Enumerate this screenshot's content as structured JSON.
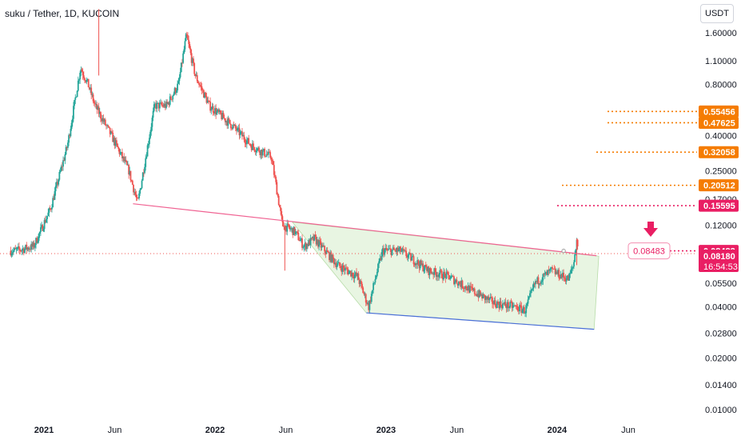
{
  "header": {
    "title": "suku / Tether, 1D, KUCOIN",
    "currency": "USDT"
  },
  "chart_data": {
    "type": "candlestick",
    "symbol": "suku / Tether",
    "interval": "1D",
    "exchange": "KUCOIN",
    "y_scale": "log",
    "ylim": [
      0.009,
      2.2
    ],
    "y_ticks": [
      "1.60000",
      "1.10000",
      "0.80000",
      "0.55456",
      "0.47625",
      "0.40000",
      "0.32058",
      "0.25000",
      "0.20512",
      "0.17000",
      "0.15595",
      "0.12000",
      "0.08483",
      "0.08180",
      "0.05500",
      "0.04000",
      "0.02800",
      "0.02000",
      "0.01400",
      "0.01000"
    ],
    "x_tick_labels": [
      "2021",
      "Jun",
      "2022",
      "Jun",
      "2023",
      "Jun",
      "2024",
      "Jun"
    ],
    "x_ticks": [
      "2021-01-01",
      "2021-06-01",
      "2022-01-01",
      "2022-06-01",
      "2023-01-01",
      "2023-06-01",
      "2024-01-01",
      "2024-06-01"
    ],
    "price_path": [
      [
        "2020-11-01",
        0.085
      ],
      [
        "2020-12-10",
        0.09
      ],
      [
        "2021-01-15",
        0.15
      ],
      [
        "2021-02-20",
        0.35
      ],
      [
        "2021-03-20",
        1.0
      ],
      [
        "2021-04-05",
        0.8
      ],
      [
        "2021-04-20",
        0.6
      ],
      [
        "2021-05-25",
        0.4
      ],
      [
        "2021-07-01",
        0.25
      ],
      [
        "2021-07-20",
        0.16
      ],
      [
        "2021-08-25",
        0.6
      ],
      [
        "2021-09-20",
        0.6
      ],
      [
        "2021-10-15",
        0.8
      ],
      [
        "2021-11-01",
        1.55
      ],
      [
        "2021-11-20",
        0.9
      ],
      [
        "2021-12-20",
        0.6
      ],
      [
        "2022-02-10",
        0.45
      ],
      [
        "2022-03-20",
        0.35
      ],
      [
        "2022-05-01",
        0.3
      ],
      [
        "2022-05-12",
        0.2
      ],
      [
        "2022-05-25",
        0.12
      ],
      [
        "2022-06-20",
        0.11
      ],
      [
        "2022-07-10",
        0.09
      ],
      [
        "2022-08-01",
        0.1
      ],
      [
        "2022-09-20",
        0.07
      ],
      [
        "2022-11-01",
        0.06
      ],
      [
        "2022-11-25",
        0.04
      ],
      [
        "2022-12-10",
        0.06
      ],
      [
        "2022-12-25",
        0.085
      ],
      [
        "2023-02-01",
        0.085
      ],
      [
        "2023-03-01",
        0.075
      ],
      [
        "2023-04-01",
        0.065
      ],
      [
        "2023-05-15",
        0.06
      ],
      [
        "2023-07-01",
        0.05
      ],
      [
        "2023-08-20",
        0.042
      ],
      [
        "2023-10-01",
        0.04
      ],
      [
        "2023-10-25",
        0.038
      ],
      [
        "2023-11-15",
        0.055
      ],
      [
        "2023-12-20",
        0.065
      ],
      [
        "2024-01-25",
        0.058
      ],
      [
        "2024-02-05",
        0.07
      ],
      [
        "2024-02-12",
        0.1
      ],
      [
        "2024-02-15",
        0.0818
      ]
    ],
    "resistance_line": [
      [
        "2021-07-10",
        0.16
      ],
      [
        "2024-03-25",
        0.0795
      ]
    ],
    "support_line": [
      [
        "2022-11-20",
        0.0368
      ],
      [
        "2024-03-20",
        0.0295
      ]
    ],
    "channel_fill": [
      [
        "2022-06-15",
        0.125
      ],
      [
        "2024-03-30",
        0.079
      ],
      [
        "2024-03-20",
        0.0295
      ],
      [
        "2022-11-20",
        0.0368
      ],
      [
        "2022-08-20",
        0.075
      ]
    ],
    "current_price_line": 0.0818,
    "target_levels": [
      {
        "price": "0.55456",
        "value": 0.55456,
        "color": "#f57c00"
      },
      {
        "price": "0.47625",
        "value": 0.47625,
        "color": "#f57c00"
      },
      {
        "price": "0.32058",
        "value": 0.32058,
        "color": "#f57c00"
      },
      {
        "price": "0.20512",
        "value": 0.20512,
        "color": "#f57c00"
      },
      {
        "price": "0.15595",
        "value": 0.15595,
        "color": "#e91e63"
      },
      {
        "price": "0.08483",
        "value": 0.08483,
        "color": "#e91e63"
      }
    ],
    "labels": {
      "high_marker": "0.08483",
      "last_price": "0.08180",
      "countdown": "16:54:53"
    },
    "colors": {
      "up": "#26a69a",
      "down": "#ef5350",
      "resistance": "#f06292",
      "support": "#4a6fd8",
      "channel_fill": "#e8f5e2",
      "target_orange": "#f57c00",
      "target_pink": "#e91e63",
      "price_line": "#ef5350"
    }
  }
}
